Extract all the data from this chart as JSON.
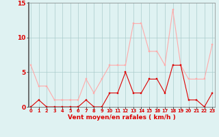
{
  "hours": [
    0,
    1,
    2,
    3,
    4,
    5,
    6,
    7,
    8,
    9,
    10,
    11,
    12,
    13,
    14,
    15,
    16,
    17,
    18,
    19,
    20,
    21,
    22,
    23
  ],
  "avg_wind": [
    0,
    1,
    0,
    0,
    0,
    0,
    0,
    1,
    0,
    0,
    2,
    2,
    5,
    2,
    2,
    4,
    4,
    2,
    6,
    6,
    1,
    1,
    0,
    2
  ],
  "gust_wind": [
    6,
    3,
    3,
    1,
    1,
    1,
    1,
    4,
    2,
    4,
    6,
    6,
    6,
    12,
    12,
    8,
    8,
    6,
    14,
    6,
    4,
    4,
    4,
    9
  ],
  "xlabel": "Vent moyen/en rafales ( km/h )",
  "yticks": [
    0,
    5,
    10,
    15
  ],
  "xticks": [
    0,
    1,
    2,
    3,
    4,
    5,
    6,
    7,
    8,
    9,
    10,
    11,
    12,
    13,
    14,
    15,
    16,
    17,
    18,
    19,
    20,
    21,
    22,
    23
  ],
  "avg_color": "#dd0000",
  "gust_color": "#ffaaaa",
  "bg_color": "#dff2f2",
  "grid_color": "#aacccc",
  "text_color": "#dd0000",
  "ylim": [
    0,
    15
  ],
  "xlim": [
    -0.3,
    23.3
  ]
}
